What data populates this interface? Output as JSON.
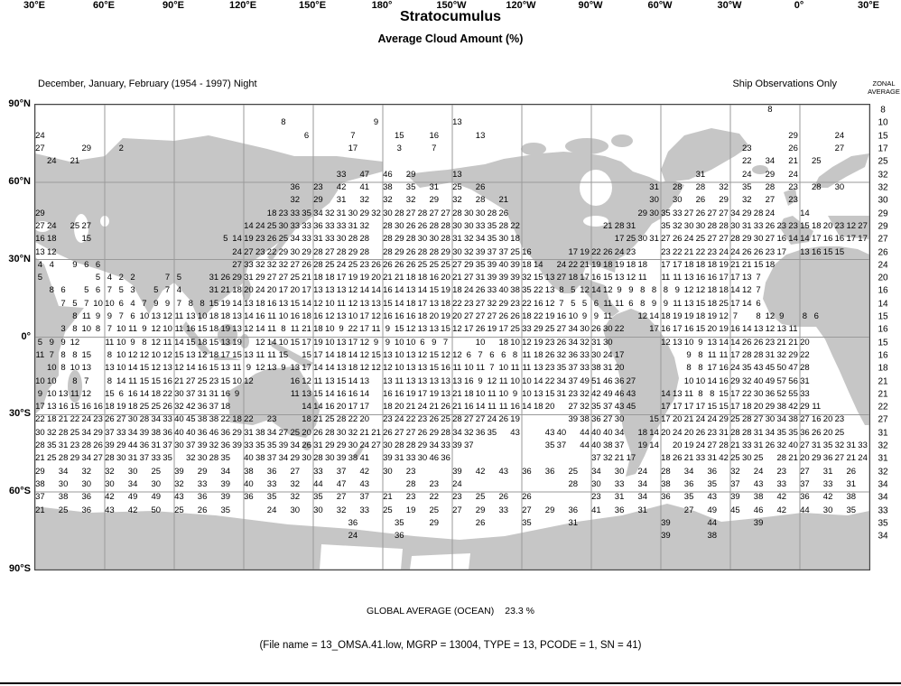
{
  "title": "Stratocumulus",
  "subtitle": "Average Cloud Amount (%)",
  "header": {
    "left": "December, January, February (1954 - 1997) Night",
    "right": "Ship Observations Only",
    "zonal_line1": "ZONAL",
    "zonal_line2": "AVERAGE"
  },
  "footer": {
    "global_avg_label": "GLOBAL AVERAGE (OCEAN)",
    "global_avg_value": "23.3 %",
    "file_info": "(File name = 13_OMSA.41.low, MGRP = 13004, TYPE = 13, PCODE = 1, SN = 41)"
  },
  "chart_data": {
    "type": "heatmap",
    "title": "Stratocumulus — Average Cloud Amount (%)",
    "description": "Numeric cloud-amount percentages on a 5-degree lat/lon grid over a world map, 90N-90S, longitudes 30E eastward around to 30E",
    "x_axis": {
      "labels": [
        "30°E",
        "60°E",
        "90°E",
        "120°E",
        "150°E",
        "180°",
        "150°W",
        "120°W",
        "90°W",
        "60°W",
        "30°W",
        "0°",
        "30°E"
      ]
    },
    "y_axis": {
      "labels": [
        "90°N",
        "60°N",
        "30°N",
        "0°",
        "30°S",
        "60°S",
        "90°S"
      ]
    },
    "grid": {
      "cols": 72,
      "rows": 36,
      "lon_cell_deg": 5,
      "lat_cell_deg": 5
    },
    "land_color": "#c6c6c6",
    "grid_line_color": "#9a9a9a",
    "zonal_average": [
      "8",
      "10",
      "15",
      "17",
      "25",
      "32",
      "32",
      "30",
      "29",
      "29",
      "27",
      "26",
      "24",
      "20",
      "16",
      "14",
      "15",
      "16",
      "15",
      "16",
      "18",
      "21",
      "21",
      "22",
      "27",
      "31",
      "32",
      "31",
      "32",
      "34",
      "34",
      "33",
      "35",
      "34",
      "",
      ""
    ],
    "rows": [
      {
        "r": 0,
        "runs": [
          [
            63,
            1,
            "8"
          ]
        ]
      },
      {
        "r": 1,
        "runs": [
          [
            21,
            1,
            "8"
          ],
          [
            29,
            1,
            "9"
          ],
          [
            36,
            1,
            "13"
          ]
        ]
      },
      {
        "r": 2,
        "runs": [
          [
            0,
            1,
            "24"
          ],
          [
            23,
            1,
            "6"
          ],
          [
            27,
            1,
            "7"
          ],
          [
            31,
            1,
            "15"
          ],
          [
            34,
            1,
            "16"
          ],
          [
            38,
            1,
            "13"
          ],
          [
            65,
            1,
            "29"
          ],
          [
            69,
            1,
            "24"
          ]
        ]
      },
      {
        "r": 3,
        "runs": [
          [
            0,
            1,
            "27"
          ],
          [
            4,
            1,
            "29"
          ],
          [
            7,
            1,
            "2"
          ],
          [
            27,
            1,
            "17"
          ],
          [
            31,
            1,
            "3"
          ],
          [
            34,
            1,
            "7"
          ],
          [
            61,
            1,
            "23"
          ],
          [
            65,
            1,
            "26"
          ],
          [
            69,
            1,
            "27"
          ]
        ]
      },
      {
        "r": 4,
        "runs": [
          [
            1,
            1,
            "24"
          ],
          [
            3,
            1,
            "21"
          ],
          [
            61,
            2,
            "22 34 21 25"
          ]
        ]
      },
      {
        "r": 5,
        "runs": [
          [
            26,
            2,
            "33 47 46 29"
          ],
          [
            36,
            1,
            "13"
          ],
          [
            57,
            1,
            "31"
          ],
          [
            61,
            2,
            "24 29 24"
          ]
        ]
      },
      {
        "r": 6,
        "runs": [
          [
            22,
            2,
            "36 23 42 41 38 35 31 25 26"
          ],
          [
            53,
            2,
            "31 28 28 32 35 28 23 28 30"
          ]
        ]
      },
      {
        "r": 7,
        "runs": [
          [
            22,
            2,
            "32 29 31 32 32 32 29 32 28 21"
          ],
          [
            53,
            2,
            "30 30 26 29 32 27 23"
          ]
        ]
      },
      {
        "r": 8,
        "runs": [
          [
            0,
            1,
            "29"
          ],
          [
            20,
            1,
            "18 23 33 35 34 32 31 30 29 32 30 28 27 28 27 27 28 30 30 28 26"
          ],
          [
            52,
            1,
            "29 30 35 33 27 26 27 27 34 29 28 24"
          ],
          [
            66,
            1,
            "14"
          ]
        ]
      },
      {
        "r": 9,
        "runs": [
          [
            0,
            1,
            "27 24"
          ],
          [
            3,
            1,
            "25 27"
          ],
          [
            18,
            1,
            "14 24 25 30 33 33 36 33 33 31 32"
          ],
          [
            30,
            1,
            "28 30 26 26 28 28 30 30 33 35 28 22"
          ],
          [
            49,
            1,
            "21 28 31"
          ],
          [
            54,
            1,
            "35 32 30 30 28 28 30 31 33 26 23 23 15 18 20 23 12 27"
          ]
        ]
      },
      {
        "r": 10,
        "runs": [
          [
            0,
            1,
            "16 18"
          ],
          [
            4,
            1,
            "15"
          ],
          [
            16,
            1,
            "5 14 19 23 26 25 34 33 31 33 30 28 28"
          ],
          [
            30,
            1,
            "28 29 28 30 30 28 31 32 34 35 30 18"
          ],
          [
            50,
            1,
            "17 25 30 31 27 26 24 25 27 27 28 29 30 27 16 14 14 17 16 16 17 17"
          ]
        ]
      },
      {
        "r": 11,
        "runs": [
          [
            0,
            1,
            "13 12"
          ],
          [
            17,
            1,
            "24 27 23 22 29 30 29 28 27 28 29 28"
          ],
          [
            30,
            1,
            "28 29 26 28 28 29 30 32 39 37 37 25 16"
          ],
          [
            46,
            1,
            "17 19 22 26 24 23"
          ],
          [
            54,
            1,
            "23 22 21 22 23 24 24 26 26 23 17"
          ],
          [
            66,
            1,
            "13 16 15 15"
          ]
        ]
      },
      {
        "r": 12,
        "runs": [
          [
            0,
            1,
            "4 4"
          ],
          [
            3,
            1,
            "9 6 6"
          ],
          [
            17,
            1,
            "27 33 32 32 32 27 26 28 25 24 25 23 26"
          ],
          [
            30,
            1,
            "26 26 26 25 25 25 27 29 35 39 40 39 18 14"
          ],
          [
            45,
            1,
            "24 22 21 19 18 19 18 18"
          ],
          [
            54,
            1,
            "17 17 18 18 18 19 21 21 15 18"
          ]
        ]
      },
      {
        "r": 13,
        "runs": [
          [
            0,
            1,
            "5"
          ],
          [
            5,
            1,
            "5 4 2 2"
          ],
          [
            11,
            1,
            "7 5"
          ],
          [
            15,
            1,
            "31 26 29 31 29 27 27 25 21 18 18 17 19 19 20"
          ],
          [
            30,
            1,
            "21 21 18 18 16 20 21 27 31 39 39 39 32 15 13"
          ],
          [
            45,
            1,
            "27 18 17 16 15 13 12 11"
          ],
          [
            54,
            1,
            "11 11 13 16 16 17 17 13 7"
          ]
        ]
      },
      {
        "r": 14,
        "runs": [
          [
            1,
            1,
            "8 6"
          ],
          [
            4,
            1,
            "5 6 7 5 3"
          ],
          [
            10,
            1,
            "5 7 4"
          ],
          [
            15,
            1,
            "31 21 18 20 24 20 17 20 17 13 13 13 12 14 14"
          ],
          [
            30,
            1,
            "16 14 13 14 15 19 18 24 26 33 40 38 35 22 13 8 5 12 14 12 9 9 8 8"
          ],
          [
            54,
            1,
            "8 9 12 12 18 18 14 12 7"
          ]
        ]
      },
      {
        "r": 15,
        "runs": [
          [
            2,
            1,
            "7 5 7 10 10 6 4 7 9 9 7 8 8 15 19 14 13 18 16 13 15 14 12 10 11 12 13 13"
          ],
          [
            30,
            1,
            "15 14 18 17 13 18 22 23 27 32 29 23 22 16 12 7 5 5 6 11 11 6 8 9"
          ],
          [
            54,
            1,
            "9 11 13 15 18 25 17 14 6"
          ]
        ]
      },
      {
        "r": 16,
        "runs": [
          [
            3,
            1,
            "8 11 9 9 7 6 10 13 12 11 13 10 18 18 13 14 16 11 10 16 18 16 12 13 10 17 12"
          ],
          [
            30,
            1,
            "16 16 16 18 20 19 20 27 27 27 26 26 18 22 19 16 10 9 9 11"
          ],
          [
            52,
            1,
            "12 14 18 19 19 18 19 12 7"
          ],
          [
            62,
            1,
            "8 12 9"
          ],
          [
            66,
            1,
            "8 6"
          ]
        ]
      },
      {
        "r": 17,
        "runs": [
          [
            2,
            1,
            "3 8 10 8 7 10 11 9 12 10 11 16 15 18 19 13 12 14 11 8 11 21 18 10 9 22 17 11"
          ],
          [
            30,
            1,
            "9 15 12 13 13 15 12 17 26 19 17 25 33 29 25 27 34 30 26 30 22"
          ],
          [
            53,
            1,
            "17 16 17 16 15 20 19 16 14 13 12 13 11"
          ]
        ]
      },
      {
        "r": 18,
        "runs": [
          [
            0,
            1,
            "5 9 9 12"
          ],
          [
            6,
            1,
            "11 10 9 8 12 11 14 15 18 15 13 19"
          ],
          [
            19,
            1,
            "12 14 10 15 17 19 10 13 17 12 9"
          ],
          [
            30,
            1,
            "9 10 10 6 9 7"
          ],
          [
            38,
            1,
            "10"
          ],
          [
            40,
            1,
            "18 10 12 19 23 26 34 32 31 30"
          ],
          [
            54,
            1,
            "12 13 10 9 13 14 14 26 26 23 21 21 20"
          ]
        ]
      },
      {
        "r": 19,
        "runs": [
          [
            0,
            1,
            "11 7 8 8 15"
          ],
          [
            6,
            1,
            "8 10 12 12 10 12 15 13 12 18 17 15"
          ],
          [
            18,
            1,
            "13 11 11 15"
          ],
          [
            23,
            1,
            "15 17 14 18 14 12 15"
          ],
          [
            30,
            1,
            "13 10 13 12 15 12 12 6 7 6 6 8 11 18 26 32 36 33 30 24 17"
          ],
          [
            56,
            1,
            "9 8 11 11 17 28 28 31 32 29 22"
          ]
        ]
      },
      {
        "r": 20,
        "runs": [
          [
            1,
            1,
            "10 8 10 13"
          ],
          [
            6,
            1,
            "13 10 14 15 12 13 12 14 16 15 13 11"
          ],
          [
            18,
            1,
            "9 12 13 9 13 17 14 14 13 18 12 12 12 10 13 13 15 16 11 10 11 7"
          ],
          [
            40,
            1,
            "10 11 11 13 23 35 37 33 38 31 20"
          ],
          [
            56,
            1,
            "8 8 17 16 24 35 43 45 50 47 28"
          ]
        ]
      },
      {
        "r": 21,
        "runs": [
          [
            0,
            1,
            "10 10"
          ],
          [
            3,
            1,
            "8 7"
          ],
          [
            6,
            1,
            "8 14 11 15 15 16 21 27 25 23 15 10 12"
          ],
          [
            22,
            1,
            "16 12 11 13 15 14 13"
          ],
          [
            30,
            1,
            "13 11 13 13 13 13 13 16 9 12 11 10 10 14 22 34 37 49 51 46 36 27"
          ],
          [
            56,
            1,
            "10 10 14 16 29 32 40 49 57 56 31"
          ]
        ]
      },
      {
        "r": 22,
        "runs": [
          [
            0,
            1,
            "9 10 13 11 12"
          ],
          [
            6,
            1,
            "15 6 16 14 18 22 30 37 31 31 16 9"
          ],
          [
            22,
            1,
            "11 13 15 14 16 16 14"
          ],
          [
            30,
            1,
            "16 16 19 17 19 13 21 18 10 11 10 9 10 13 15 31 23 32 42 49 46 43"
          ],
          [
            54,
            1,
            "14 13 11 8 8 15 17 22 30 36 52 55 33"
          ]
        ]
      },
      {
        "r": 23,
        "runs": [
          [
            0,
            1,
            "17 13 16 15 16 16"
          ],
          [
            6,
            1,
            "18 19 18 25 25 26 32 42 36 37 18"
          ],
          [
            23,
            1,
            "14 14 16 20 17 17"
          ],
          [
            30,
            1,
            "18 20 21 24 21 26 21 16 14 11 11 16 14 18 20"
          ],
          [
            46,
            1,
            "27 32 35 37 43 45"
          ],
          [
            54,
            1,
            "17 17 17 17 15 15 17 18 20 29 38 42 29 11"
          ]
        ]
      },
      {
        "r": 24,
        "runs": [
          [
            0,
            1,
            "22 18 21 22 24 23"
          ],
          [
            6,
            1,
            "26 27 30 28 34 33 40 45 38 38 22 18 22"
          ],
          [
            20,
            1,
            "23"
          ],
          [
            23,
            1,
            "18 21 25 28 22 20"
          ],
          [
            30,
            1,
            "23 24 22 23 26 25 28 27 27 24 26 19"
          ],
          [
            46,
            1,
            "39 38 36 27 30"
          ],
          [
            53,
            1,
            "15 17 20 21 24 24 29 25 28 27 30 34 38 27 16 20 23"
          ]
        ]
      },
      {
        "r": 25,
        "runs": [
          [
            0,
            1,
            "30 32 28 25 34 29"
          ],
          [
            6,
            1,
            "37 33 34 39 38 36 40 40 36 46 36 29"
          ],
          [
            18,
            1,
            "31 38 34 27 25 20 26 28 30 32 21 21"
          ],
          [
            30,
            1,
            "26 27 27 26 29 28 34 32 36 35"
          ],
          [
            41,
            1,
            "43"
          ],
          [
            44,
            1,
            "43 40"
          ],
          [
            47,
            1,
            "44 40 40 34"
          ],
          [
            52,
            1,
            "18 14 20 24 20 26 23 31 28 28 31 34 35 35 36 26 20 25"
          ]
        ]
      },
      {
        "r": 26,
        "runs": [
          [
            0,
            1,
            "28 35 31 23 28 26"
          ],
          [
            6,
            1,
            "39 29 44 36 31 37 30 37 39 32 36 39"
          ],
          [
            18,
            1,
            "33 35 35 39 34 26 31 29 29 30 24 27"
          ],
          [
            30,
            1,
            "30 28 28 29 34 33 39 37"
          ],
          [
            44,
            1,
            "35 37"
          ],
          [
            47,
            1,
            "44 40 38 37"
          ],
          [
            52,
            1,
            "19 14"
          ],
          [
            55,
            1,
            "20 19 24 27 28"
          ],
          [
            60,
            1,
            "21 33 31 26 32 40 27 31 35 32 31 33"
          ]
        ]
      },
      {
        "r": 27,
        "runs": [
          [
            0,
            1,
            "21 25 28 29 34 27"
          ],
          [
            6,
            1,
            "28 30 31 37 33 35"
          ],
          [
            13,
            1,
            "32 30 28 35"
          ],
          [
            18,
            1,
            "40 38 37 34 29"
          ],
          [
            23,
            1,
            "30 28 30 39 38 41"
          ],
          [
            30,
            1,
            "39 31 33 30 46 36"
          ],
          [
            48,
            1,
            "37 32 21 17"
          ],
          [
            54,
            1,
            "18 26 21 33 31 42 25 30 25"
          ],
          [
            64,
            1,
            "28 21 20 29 36 27 21 24"
          ]
        ]
      },
      {
        "r": 28,
        "runs": [
          [
            0,
            2,
            "29 34 32 32 30 25 39 29 34 38 36 27 33 37 42 30 23"
          ],
          [
            36,
            2,
            "39 42 43 36 36 25 34 30 24 28 34 36 32 24 23 27 31 26"
          ]
        ]
      },
      {
        "r": 29,
        "runs": [
          [
            0,
            2,
            "38 30 30 30 34 30 32 33 39 40 33 32 44 47 43"
          ],
          [
            32,
            2,
            "28 23 24"
          ],
          [
            46,
            2,
            "28 30 33 34 38 36 35 37 43 33 37 33 31"
          ]
        ]
      },
      {
        "r": 30,
        "runs": [
          [
            0,
            2,
            "37 38 36 42 49 49 43 36 39 36 35 32 35 27 37 21 23 22 23 25 26 26"
          ],
          [
            48,
            2,
            "23 31 34 36 35 43 39 38 42 36 42 38"
          ]
        ]
      },
      {
        "r": 31,
        "runs": [
          [
            0,
            2,
            "21 25 36 43 42 50 25 26 35"
          ],
          [
            20,
            2,
            "24 30 30 32 33 25 19 25 27 29 33 27 29 36 41 36 31"
          ],
          [
            56,
            2,
            "27 49 45 46 42 44 30 35"
          ]
        ]
      },
      {
        "r": 32,
        "runs": [
          [
            27,
            4,
            "36 35"
          ],
          [
            34,
            4,
            "29 26 35 31"
          ],
          [
            54,
            4,
            "39 44 39"
          ]
        ]
      },
      {
        "r": 33,
        "runs": [
          [
            27,
            4,
            "24 36"
          ],
          [
            54,
            4,
            "39 38"
          ]
        ]
      },
      {
        "r": 34,
        "runs": []
      },
      {
        "r": 35,
        "runs": []
      }
    ]
  }
}
